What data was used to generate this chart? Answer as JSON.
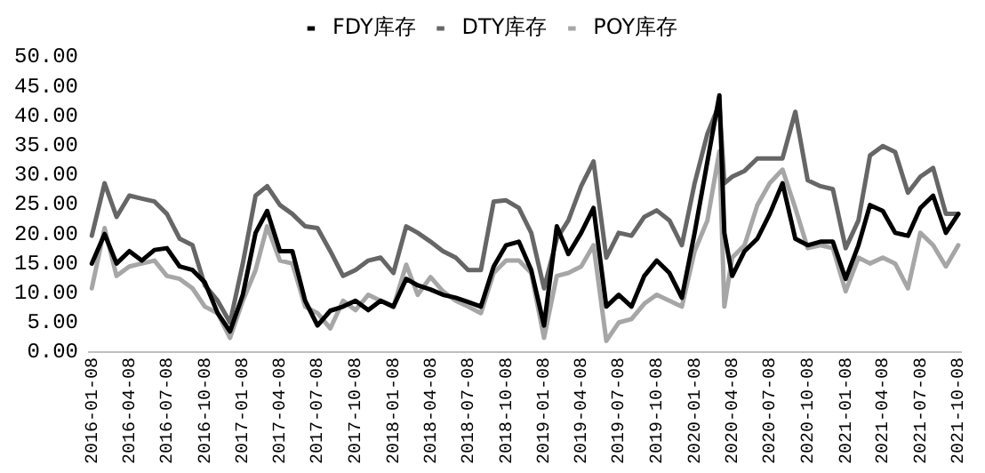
{
  "chart_data": {
    "type": "line",
    "x": [
      "2016-01-08",
      "2016-02-08",
      "2016-03-08",
      "2016-04-08",
      "2016-05-08",
      "2016-06-08",
      "2016-07-08",
      "2016-08-08",
      "2016-09-08",
      "2016-10-08",
      "2016-11-08",
      "2016-12-08",
      "2017-01-08",
      "2017-02-08",
      "2017-03-08",
      "2017-04-08",
      "2017-05-08",
      "2017-06-08",
      "2017-07-08",
      "2017-08-08",
      "2017-09-08",
      "2017-10-08",
      "2017-11-08",
      "2017-12-08",
      "2018-01-08",
      "2018-02-08",
      "2018-03-08",
      "2018-04-08",
      "2018-05-08",
      "2018-06-08",
      "2018-07-08",
      "2018-08-08",
      "2018-09-08",
      "2018-10-08",
      "2018-11-08",
      "2018-12-08",
      "2019-01-08",
      "2019-02-08",
      "2019-03-08",
      "2019-04-08",
      "2019-05-08",
      "2019-06-08",
      "2019-07-08",
      "2019-08-08",
      "2019-09-08",
      "2019-10-08",
      "2019-11-08",
      "2019-12-08",
      "2020-01-08",
      "2020-02-08",
      "2020-03-08",
      "2020-03-20",
      "2020-04-08",
      "2020-05-08",
      "2020-06-08",
      "2020-07-08",
      "2020-08-08",
      "2020-09-08",
      "2020-10-08",
      "2020-11-08",
      "2020-12-08",
      "2021-01-08",
      "2021-02-08",
      "2021-03-08",
      "2021-04-08",
      "2021-05-08",
      "2021-06-08",
      "2021-07-08",
      "2021-08-08",
      "2021-09-08",
      "2021-10-08"
    ],
    "series": [
      {
        "name": "FDY库存",
        "color": "#000000",
        "values": [
          15,
          20,
          15,
          17.1,
          15.5,
          17.3,
          17.6,
          14.5,
          13.9,
          11.8,
          6.6,
          3.5,
          9.7,
          20.2,
          23.9,
          17.1,
          17.1,
          8.7,
          4.5,
          7,
          7.7,
          8.7,
          7.1,
          8.7,
          7.7,
          12.4,
          11.3,
          10.6,
          9.7,
          9.2,
          8.5,
          7.7,
          14.5,
          18.1,
          18.7,
          13.9,
          4.5,
          21.3,
          16.6,
          20.2,
          24.4,
          7.7,
          9.7,
          7.7,
          12.9,
          15.5,
          13.4,
          9.2,
          20.2,
          32.3,
          43.5,
          20.2,
          12.9,
          17.1,
          19.2,
          23.4,
          28.6,
          19.2,
          18.1,
          18.7,
          18.7,
          12.4,
          18.1,
          24.9,
          23.9,
          20.2,
          19.7,
          24.4,
          26.5,
          20.2,
          23.4
        ]
      },
      {
        "name": "DTY库存",
        "color": "#666666",
        "values": [
          19.7,
          28.6,
          22.9,
          26.5,
          26,
          25.5,
          23.4,
          19.2,
          18.1,
          11.3,
          8.7,
          5,
          15,
          26.5,
          28.1,
          24.9,
          23.4,
          21.3,
          21,
          17.1,
          12.9,
          13.9,
          15.5,
          16,
          13.4,
          21.3,
          20.2,
          18.7,
          17.1,
          16,
          13.9,
          13.9,
          25.5,
          25.7,
          24.4,
          20.2,
          10.8,
          19.2,
          22.3,
          28.1,
          32.3,
          16,
          20.2,
          19.7,
          22.9,
          24,
          22.3,
          18.1,
          28.6,
          37,
          42,
          28.6,
          29.7,
          30.7,
          32.8,
          32.8,
          32.8,
          40.7,
          29.1,
          28.1,
          27.6,
          17.6,
          22.3,
          33.3,
          34.9,
          33.9,
          27,
          29.7,
          31.2,
          23.4,
          23.4
        ]
      },
      {
        "name": "POY库存",
        "color": "#a6a6a6",
        "values": [
          10.8,
          21,
          12.9,
          14.5,
          15,
          15.5,
          12.9,
          12.4,
          10.8,
          7.7,
          6.6,
          2.4,
          8.7,
          13.9,
          21.3,
          15.5,
          15,
          7.7,
          6.6,
          4,
          8.7,
          7.1,
          9.7,
          8.7,
          7.7,
          14.8,
          9.7,
          12.7,
          10.3,
          8.7,
          7.7,
          6.6,
          13.4,
          15.5,
          15.5,
          13.4,
          2.4,
          12.9,
          13.4,
          14.5,
          18.1,
          1.9,
          5,
          5.6,
          8.2,
          9.7,
          8.7,
          7.7,
          17.1,
          22.3,
          34,
          7.7,
          16,
          18.1,
          24.9,
          28.6,
          30.9,
          24.4,
          17.6,
          18.1,
          17.6,
          10.3,
          16,
          15,
          16,
          15,
          10.8,
          20.2,
          18.1,
          14.5,
          18.1
        ]
      }
    ],
    "xlim": [
      "2016-01-01",
      "2021-10-15"
    ],
    "xticks": [
      "2016-01-08",
      "2016-04-08",
      "2016-07-08",
      "2016-10-08",
      "2017-01-08",
      "2017-04-08",
      "2017-07-08",
      "2017-10-08",
      "2018-01-08",
      "2018-04-08",
      "2018-07-08",
      "2018-10-08",
      "2019-01-08",
      "2019-04-08",
      "2019-07-08",
      "2019-10-08",
      "2020-01-08",
      "2020-04-08",
      "2020-07-08",
      "2020-10-08",
      "2021-01-08",
      "2021-04-08",
      "2021-07-08",
      "2021-10-08"
    ],
    "ylim": [
      0,
      50
    ],
    "yticks": [
      {
        "value": 0,
        "label": "0.00"
      },
      {
        "value": 5,
        "label": "5.00"
      },
      {
        "value": 10,
        "label": "10.00"
      },
      {
        "value": 15,
        "label": "15.00"
      },
      {
        "value": 20,
        "label": "20.00"
      },
      {
        "value": 25,
        "label": "25.00"
      },
      {
        "value": 30,
        "label": "30.00"
      },
      {
        "value": 35,
        "label": "35.00"
      },
      {
        "value": 40,
        "label": "40.00"
      },
      {
        "value": 45,
        "label": "45.00"
      },
      {
        "value": 50,
        "label": "50.00"
      }
    ],
    "grid": false,
    "legend": "top",
    "marker": "none",
    "line_style": "solid"
  }
}
